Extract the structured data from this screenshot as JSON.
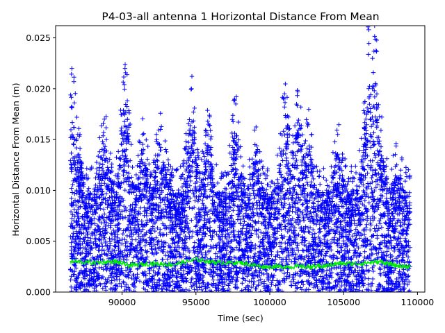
{
  "chart_data": {
    "type": "scatter",
    "title": "P4-03-all antenna 1 Horizontal Distance From Mean",
    "xlabel": "Time (sec)",
    "ylabel": "Horizontal Distance From Mean (m)",
    "xlim": [
      85500,
      110500
    ],
    "ylim": [
      0.0,
      0.0262
    ],
    "xticks": [
      90000,
      95000,
      100000,
      105000,
      110000
    ],
    "xtick_labels": [
      "90000",
      "95000",
      "100000",
      "105000",
      "110000"
    ],
    "yticks": [
      0.0,
      0.005,
      0.01,
      0.015,
      0.02,
      0.025
    ],
    "ytick_labels": [
      "0.000",
      "0.005",
      "0.010",
      "0.015",
      "0.020",
      "0.025"
    ],
    "grid": false,
    "legend": "none",
    "series": [
      {
        "style": "blue plus markers",
        "color": "#0000ff",
        "x_range": [
          86500,
          109500
        ],
        "value_spread": [
          0.0,
          0.0262
        ],
        "peaks": [
          {
            "x": 86600,
            "y": 0.022
          },
          {
            "x": 87000,
            "y": 0.0155
          },
          {
            "x": 88800,
            "y": 0.017
          },
          {
            "x": 90200,
            "y": 0.022
          },
          {
            "x": 91400,
            "y": 0.0155
          },
          {
            "x": 92600,
            "y": 0.016
          },
          {
            "x": 94700,
            "y": 0.02
          },
          {
            "x": 95800,
            "y": 0.0168
          },
          {
            "x": 97700,
            "y": 0.0185
          },
          {
            "x": 99000,
            "y": 0.0145
          },
          {
            "x": 101000,
            "y": 0.0195
          },
          {
            "x": 101900,
            "y": 0.0197
          },
          {
            "x": 102600,
            "y": 0.0165
          },
          {
            "x": 104600,
            "y": 0.0155
          },
          {
            "x": 106700,
            "y": 0.0258
          },
          {
            "x": 107100,
            "y": 0.0262
          },
          {
            "x": 108600,
            "y": 0.0125
          }
        ]
      },
      {
        "style": "green line",
        "color": "#00ee00",
        "x": [
          86500,
          88000,
          89500,
          90500,
          92000,
          93500,
          95000,
          96500,
          98000,
          99500,
          101000,
          102500,
          103500,
          104500,
          106000,
          107500,
          108500,
          109500
        ],
        "y": [
          0.003,
          0.0029,
          0.003,
          0.0026,
          0.0028,
          0.0027,
          0.0032,
          0.0029,
          0.0029,
          0.0025,
          0.0025,
          0.0025,
          0.0025,
          0.0028,
          0.0028,
          0.003,
          0.0026,
          0.0025
        ]
      }
    ]
  }
}
